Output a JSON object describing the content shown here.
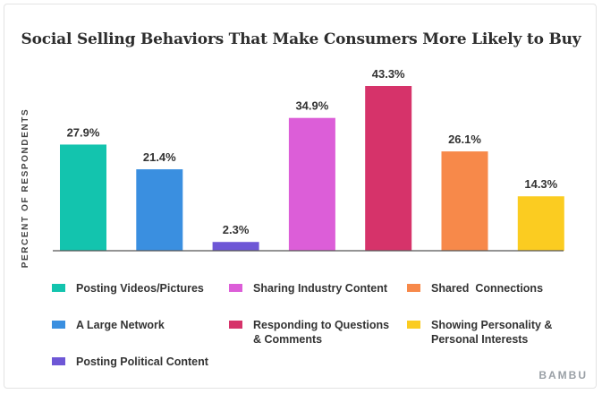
{
  "chart_data": {
    "type": "bar",
    "title": "Social Selling Behaviors That Make Consumers More Likely to Buy",
    "ylabel": "PERCENT OF RESPONDENTS",
    "xlabel": "",
    "unit": "%",
    "ylim": [
      0,
      43.3
    ],
    "grid": false,
    "legend_placement": "bottom",
    "categories": [
      "Posting Videos/Pictures",
      "A Large Network",
      "Posting Political Content",
      "Sharing Industry Content",
      "Responding to Questions & Comments",
      "Shared  Connections",
      "Showing Personality & Personal Interests"
    ],
    "values": [
      27.9,
      21.4,
      2.3,
      34.9,
      43.3,
      26.1,
      14.3
    ],
    "data_labels": [
      "27.9%",
      "21.4%",
      "2.3%",
      "34.9%",
      "43.3%",
      "26.1%",
      "14.3%"
    ],
    "colors": [
      "#13c4ae",
      "#3a8fe0",
      "#6e57d6",
      "#dc5ed8",
      "#d6336a",
      "#f7894a",
      "#fbcc21"
    ]
  },
  "legend": [
    {
      "label": "Posting Videos/Pictures",
      "color": "#13c4ae"
    },
    {
      "label": "A Large Network",
      "color": "#3a8fe0"
    },
    {
      "label": "Posting Political Content",
      "color": "#6e57d6"
    },
    {
      "label": "Sharing Industry Content",
      "color": "#dc5ed8"
    },
    {
      "label": "Responding to Questions & Comments",
      "color": "#d6336a"
    },
    {
      "label": "Shared  Connections",
      "color": "#f7894a"
    },
    {
      "label": "Showing Personality & Personal Interests",
      "color": "#fbcc21"
    }
  ],
  "brand": "BAMBU"
}
